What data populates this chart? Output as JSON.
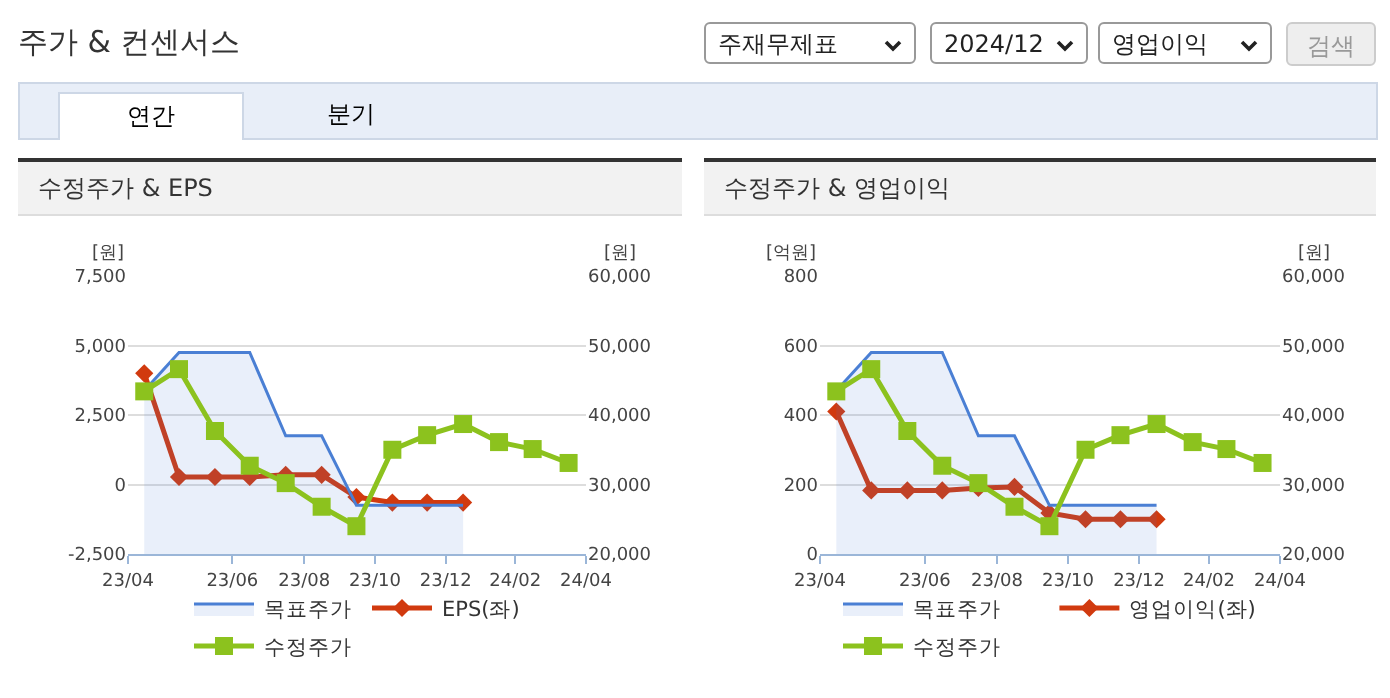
{
  "chart_data": [
    {
      "type": "other",
      "title": "주가 & 컨센서스",
      "annotations": [
        "주재무제표",
        "2024/12",
        "영업이익",
        "검색",
        "연간",
        "분기"
      ]
    },
    {
      "type": "line",
      "title": "수정주가 & EPS",
      "ylabel": "[원]",
      "y2label": "[원]",
      "x": [
        "2023-04-15",
        "2023-05-15",
        "2023-06-15",
        "2023-07-15",
        "2023-08-15",
        "2023-09-15",
        "2023-10-15",
        "2023-11-15",
        "2023-12-15",
        "2024-01-15",
        "2024-02-15",
        "2024-03-15",
        "2024-04-15"
      ],
      "xlim": [
        "2023-04-01",
        "2024-04-30"
      ],
      "xticks": [
        {
          "value": "2023-04-01",
          "label": "23/04"
        },
        {
          "value": "2023-06-30",
          "label": "23/06"
        },
        {
          "value": "2023-08-31",
          "label": "23/08"
        },
        {
          "value": "2023-10-31",
          "label": "23/10"
        },
        {
          "value": "2023-12-31",
          "label": "23/12"
        },
        {
          "value": "2024-02-29",
          "label": "24/02"
        },
        {
          "value": "2024-04-30",
          "label": "24/04"
        }
      ],
      "ylim": [
        -2500,
        7500
      ],
      "yticks": [
        {
          "value": -2500,
          "label": "-2,500"
        },
        0,
        {
          "value": 2500,
          "label": "2,500"
        },
        {
          "value": 5000,
          "label": "5,000"
        },
        {
          "value": 7500,
          "label": "7,500"
        }
      ],
      "y2lim": [
        20000,
        60000
      ],
      "y2ticks": [
        {
          "value": 20000,
          "label": "20,000"
        },
        {
          "value": 30000,
          "label": "30,000"
        },
        {
          "value": 40000,
          "label": "40,000"
        },
        {
          "value": 50000,
          "label": "50,000"
        },
        {
          "value": 60000,
          "label": "60,000"
        }
      ],
      "grid": "y",
      "legend": "bottom",
      "series": [
        {
          "name": "목표주가",
          "type": "area",
          "axis": "y2",
          "color": "#4a7fd4",
          "marker": "none",
          "values": [
            43500,
            49000,
            49000,
            49000,
            37000,
            37000,
            27000,
            27000,
            27000,
            27000,
            null,
            null,
            null
          ]
        },
        {
          "name": "EPS(좌)",
          "type": "line",
          "color": "#d13a0f",
          "marker": "diamond",
          "values": [
            4000,
            270,
            270,
            270,
            350,
            350,
            -450,
            -650,
            -650,
            -650,
            null,
            null,
            null
          ]
        },
        {
          "name": "수정주가",
          "type": "line",
          "axis": "y2",
          "color": "#8cc21e",
          "marker": "square",
          "values": [
            43400,
            46600,
            37700,
            32700,
            30200,
            26800,
            24000,
            35000,
            37100,
            38700,
            36100,
            35100,
            33100
          ]
        }
      ]
    },
    {
      "type": "line",
      "title": "수정주가 & 영업이익",
      "ylabel": "[억원]",
      "y2label": "[원]",
      "x": [
        "2023-04-15",
        "2023-05-15",
        "2023-06-15",
        "2023-07-15",
        "2023-08-15",
        "2023-09-15",
        "2023-10-15",
        "2023-11-15",
        "2023-12-15",
        "2024-01-15",
        "2024-02-15",
        "2024-03-15",
        "2024-04-15"
      ],
      "xlim": [
        "2023-04-01",
        "2024-04-30"
      ],
      "xticks": [
        {
          "value": "2023-04-01",
          "label": "23/04"
        },
        {
          "value": "2023-06-30",
          "label": "23/06"
        },
        {
          "value": "2023-08-31",
          "label": "23/08"
        },
        {
          "value": "2023-10-31",
          "label": "23/10"
        },
        {
          "value": "2023-12-31",
          "label": "23/12"
        },
        {
          "value": "2024-02-29",
          "label": "24/02"
        },
        {
          "value": "2024-04-30",
          "label": "24/04"
        }
      ],
      "ylim": [
        0,
        800
      ],
      "yticks": [
        0,
        200,
        400,
        600,
        800
      ],
      "y2lim": [
        20000,
        60000
      ],
      "y2ticks": [
        {
          "value": 20000,
          "label": "20,000"
        },
        {
          "value": 30000,
          "label": "30,000"
        },
        {
          "value": 40000,
          "label": "40,000"
        },
        {
          "value": 50000,
          "label": "50,000"
        },
        {
          "value": 60000,
          "label": "60,000"
        }
      ],
      "grid": "y",
      "legend": "bottom",
      "series": [
        {
          "name": "목표주가",
          "type": "area",
          "axis": "y2",
          "color": "#4a7fd4",
          "marker": "none",
          "values": [
            43500,
            49000,
            49000,
            49000,
            37000,
            37000,
            27000,
            27000,
            27000,
            27000,
            null,
            null,
            null
          ]
        },
        {
          "name": "영업이익(좌)",
          "type": "line",
          "color": "#d13a0f",
          "marker": "diamond",
          "values": [
            410,
            183,
            183,
            183,
            190,
            193,
            118,
            100,
            100,
            100,
            null,
            null,
            null
          ]
        },
        {
          "name": "수정주가",
          "type": "line",
          "axis": "y2",
          "color": "#8cc21e",
          "marker": "square",
          "values": [
            43400,
            46600,
            37700,
            32700,
            30200,
            26800,
            24000,
            35000,
            37100,
            38700,
            36100,
            35100,
            33100
          ]
        }
      ]
    }
  ]
}
